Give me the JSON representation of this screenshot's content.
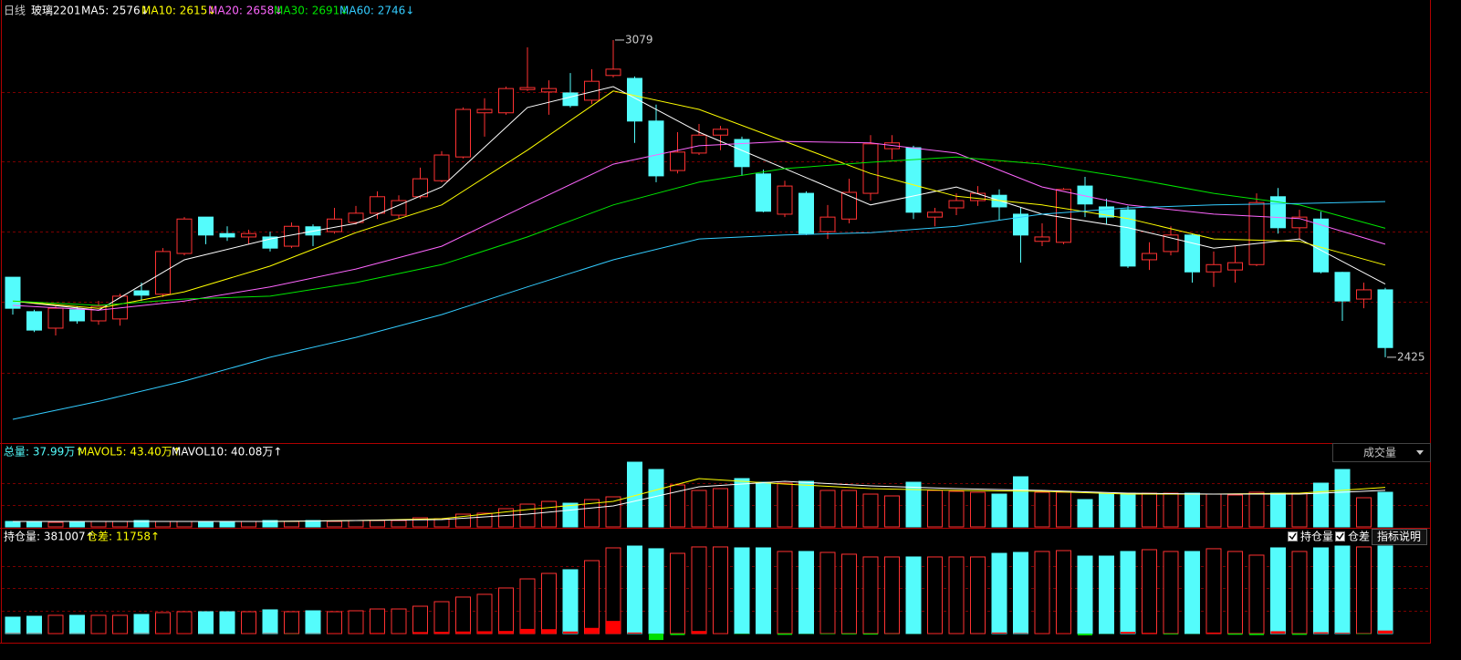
{
  "chart_data": {
    "type": "candlestick",
    "title": "日线",
    "symbol": "玻璃2201",
    "up_color": "#ff3232",
    "down_color": "#54fcfc",
    "open": [
      2590,
      2519,
      2485,
      2523,
      2500,
      2504,
      2562,
      2555,
      2639,
      2714,
      2680,
      2673,
      2673,
      2654,
      2694,
      2684,
      2703,
      2722,
      2718,
      2756,
      2789,
      2838,
      2929,
      2929,
      2977,
      2972,
      2970,
      2955,
      3006,
      3000,
      2912,
      2810,
      2846,
      2883,
      2874,
      2803,
      2720,
      2763,
      2684,
      2710,
      2763,
      2855,
      2857,
      2714,
      2733,
      2748,
      2759,
      2720,
      2664,
      2662,
      2778,
      2735,
      2729,
      2626,
      2643,
      2677,
      2601,
      2605,
      2616,
      2756,
      2692,
      2710,
      2600,
      2545,
      2564
    ],
    "high": [
      2590,
      2523,
      2530,
      2530,
      2541,
      2556,
      2579,
      2650,
      2714,
      2714,
      2695,
      2688,
      2684,
      2703,
      2699,
      2733,
      2737,
      2767,
      2759,
      2816,
      2850,
      2940,
      2959,
      2983,
      3064,
      2996,
      3011,
      3019,
      3079,
      3004,
      2946,
      2889,
      2906,
      2902,
      2880,
      2812,
      2789,
      2767,
      2739,
      2793,
      2883,
      2883,
      2861,
      2733,
      2763,
      2778,
      2771,
      2733,
      2701,
      2774,
      2797,
      2752,
      2737,
      2662,
      2695,
      2680,
      2643,
      2654,
      2763,
      2774,
      2729,
      2725,
      2601,
      2579,
      2568
    ],
    "low": [
      2513,
      2477,
      2470,
      2494,
      2492,
      2490,
      2541,
      2549,
      2635,
      2658,
      2665,
      2658,
      2643,
      2650,
      2654,
      2680,
      2699,
      2710,
      2710,
      2752,
      2786,
      2835,
      2880,
      2925,
      2974,
      2925,
      2940,
      2947,
      3002,
      2867,
      2786,
      2804,
      2842,
      2852,
      2799,
      2724,
      2714,
      2677,
      2669,
      2701,
      2748,
      2833,
      2710,
      2695,
      2718,
      2737,
      2707,
      2620,
      2654,
      2658,
      2714,
      2699,
      2609,
      2605,
      2635,
      2579,
      2570,
      2579,
      2613,
      2680,
      2669,
      2598,
      2500,
      2526,
      2425
    ],
    "close": [
      2526,
      2481,
      2526,
      2500,
      2530,
      2551,
      2553,
      2643,
      2710,
      2677,
      2673,
      2680,
      2650,
      2695,
      2677,
      2710,
      2722,
      2756,
      2748,
      2793,
      2842,
      2936,
      2936,
      2979,
      2981,
      2979,
      2944,
      2994,
      3019,
      2912,
      2799,
      2848,
      2883,
      2895,
      2818,
      2726,
      2778,
      2680,
      2714,
      2765,
      2865,
      2867,
      2724,
      2724,
      2748,
      2763,
      2735,
      2677,
      2673,
      2771,
      2741,
      2714,
      2613,
      2639,
      2677,
      2601,
      2616,
      2620,
      2744,
      2692,
      2714,
      2601,
      2541,
      2564,
      2445
    ],
    "ylim": [
      2250,
      3124
    ],
    "yticks": [
      2393,
      2539,
      2684,
      2829,
      2972
    ],
    "ma_x": [
      0,
      4,
      8,
      12,
      16,
      20,
      24,
      28,
      32,
      36,
      40,
      44,
      48,
      52,
      56,
      60,
      64
    ],
    "series": [
      {
        "label": "MA5: 2576↓",
        "color": "#ffffff",
        "values": [
          2541,
          2522,
          2626,
          2669,
          2701,
          2776,
          2940,
          2983,
          2889,
          2814,
          2739,
          2776,
          2720,
          2692,
          2650,
          2669,
          2576
        ]
      },
      {
        "label": "MA10: 2615↓",
        "color": "#ffff00",
        "values": [
          2541,
          2526,
          2560,
          2613,
          2682,
          2739,
          2852,
          2974,
          2936,
          2870,
          2804,
          2757,
          2739,
          2711,
          2669,
          2664,
          2615
        ]
      },
      {
        "label": "MA20: 2658↓",
        "color": "#ff66ff",
        "values": [
          2532,
          2522,
          2541,
          2570,
          2607,
          2654,
          2739,
          2823,
          2861,
          2870,
          2867,
          2846,
          2776,
          2739,
          2720,
          2711,
          2658
        ]
      },
      {
        "label": "MA30: 2691↓",
        "color": "#00e600",
        "values": [
          2541,
          2532,
          2545,
          2551,
          2579,
          2616,
          2673,
          2739,
          2786,
          2814,
          2827,
          2838,
          2823,
          2795,
          2763,
          2739,
          2691
        ]
      },
      {
        "label": "MA60: 2746↓",
        "color": "#33ccff",
        "values": [
          2297,
          2334,
          2376,
          2425,
          2466,
          2513,
          2570,
          2626,
          2669,
          2677,
          2682,
          2695,
          2720,
          2733,
          2739,
          2742,
          2746
        ]
      }
    ],
    "volume": {
      "indicator": "成交量",
      "ylim": [
        0,
        90
      ],
      "values": [
        6,
        6,
        5,
        6,
        6,
        6,
        7,
        6,
        6,
        6,
        5,
        6,
        7,
        6,
        7,
        6,
        7,
        7,
        7,
        10,
        9,
        14,
        15,
        20,
        25,
        28,
        26,
        30,
        33,
        71,
        63,
        46,
        40,
        42,
        53,
        49,
        48,
        50,
        40,
        40,
        36,
        34,
        49,
        40,
        39,
        38,
        36,
        55,
        38,
        38,
        30,
        36,
        37,
        37,
        37,
        37,
        36,
        35,
        38,
        37,
        37,
        48,
        63,
        32,
        37.99
      ],
      "total_label": "总量: 37.99万↑",
      "total_color": "#54fcfc",
      "series": [
        {
          "label": "MAVOL5: 43.40万↑",
          "color": "#ffff00",
          "values": [
            6,
            6,
            6,
            6,
            7,
            9,
            19,
            28,
            53,
            47,
            42,
            40,
            39,
            36,
            36,
            37,
            43.4
          ]
        },
        {
          "label": "MAVOL10: 40.08万↑",
          "color": "#ffffff",
          "values": [
            6,
            6,
            6,
            6,
            7,
            8,
            14,
            23,
            44,
            50,
            45,
            42,
            40,
            37,
            36,
            36,
            40.08
          ]
        }
      ]
    },
    "open_interest": {
      "ylim": [
        250000,
        385000
      ],
      "diff_ylim": [
        -350000,
        350000
      ],
      "values": [
        274600,
        275900,
        277300,
        277300,
        277300,
        277300,
        278600,
        281400,
        282700,
        282700,
        282700,
        282700,
        285500,
        282700,
        284100,
        282700,
        284100,
        286800,
        286800,
        290900,
        297700,
        304600,
        308700,
        318200,
        331800,
        340000,
        345500,
        359100,
        378200,
        380900,
        376900,
        370000,
        379600,
        379600,
        378200,
        378200,
        372800,
        372800,
        371400,
        368700,
        364600,
        364600,
        364600,
        364600,
        364600,
        364600,
        370000,
        371400,
        372800,
        374100,
        365900,
        365900,
        372800,
        375500,
        372800,
        372800,
        376900,
        372800,
        367300,
        378200,
        372800,
        378200,
        380900,
        379600,
        381007
      ],
      "diff": [
        1500,
        1200,
        1000,
        800,
        600,
        900,
        1100,
        2000,
        1500,
        400,
        -300,
        500,
        1300,
        -600,
        900,
        1200,
        1000,
        2500,
        800,
        6000,
        7000,
        8000,
        9000,
        10000,
        18000,
        17000,
        8000,
        22000,
        49000,
        4000,
        -25000,
        -6000,
        10000,
        900,
        -1500,
        -300,
        -5000,
        -800,
        -2000,
        -3000,
        -4000,
        -500,
        -300,
        600,
        500,
        200,
        4000,
        2000,
        1000,
        1500,
        -7000,
        -500,
        6500,
        3000,
        -3000,
        -500,
        4000,
        -4500,
        -6000,
        9000,
        -5000,
        5000,
        3000,
        -1500,
        11758
      ],
      "oi_label": "持仓量: 381007↑",
      "oi_color": "#ffffff",
      "diff_label": "仓差: 11758↑",
      "diff_color": "#ffff00",
      "checks": [
        "持仓量",
        "仓差"
      ],
      "help": "指标说明"
    }
  }
}
